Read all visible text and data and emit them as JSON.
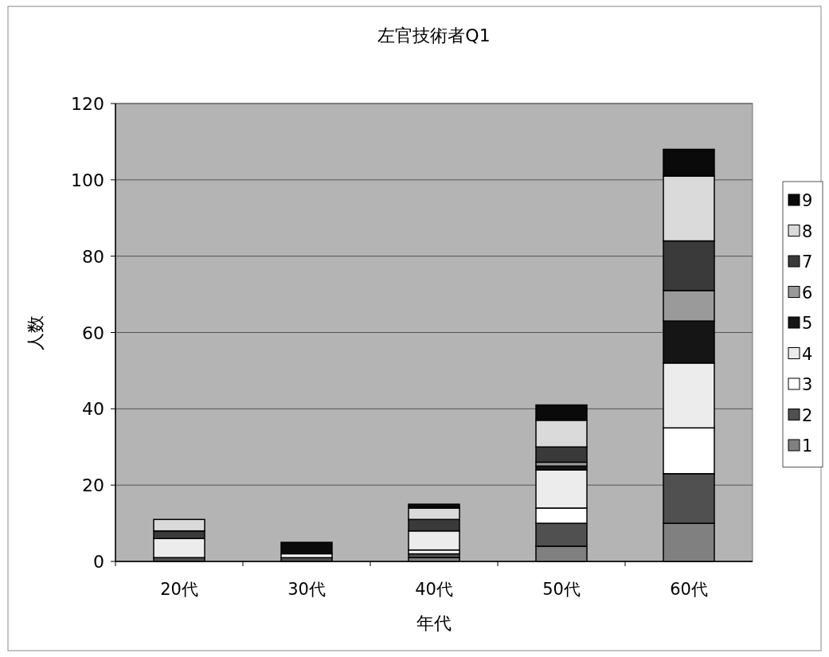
{
  "chart_data": {
    "type": "bar",
    "title": "左官技術者Q1",
    "xlabel": "年代",
    "ylabel": "人数",
    "categories": [
      "20代",
      "30代",
      "40代",
      "50代",
      "60代"
    ],
    "stacked": true,
    "ylim": [
      0,
      120
    ],
    "yticks": [
      0,
      20,
      40,
      60,
      80,
      100,
      120
    ],
    "grid": "y",
    "legend": "right",
    "series": [
      {
        "name": "1",
        "color": "#808080",
        "values": [
          0,
          0,
          1,
          4,
          10
        ]
      },
      {
        "name": "2",
        "color": "#505050",
        "values": [
          1,
          1,
          1,
          6,
          13
        ]
      },
      {
        "name": "3",
        "color": "#ffffff",
        "values": [
          0,
          1,
          1,
          4,
          12
        ]
      },
      {
        "name": "4",
        "color": "#ececec",
        "values": [
          5,
          0,
          5,
          10,
          17
        ]
      },
      {
        "name": "5",
        "color": "#151515",
        "values": [
          0,
          0,
          0,
          1,
          11
        ]
      },
      {
        "name": "6",
        "color": "#9a9a9a",
        "values": [
          0,
          0,
          0,
          1,
          8
        ]
      },
      {
        "name": "7",
        "color": "#3a3a3a",
        "values": [
          2,
          0,
          3,
          4,
          13
        ]
      },
      {
        "name": "8",
        "color": "#dadada",
        "values": [
          3,
          0,
          3,
          7,
          17
        ]
      },
      {
        "name": "9",
        "color": "#0a0a0a",
        "values": [
          0,
          3,
          1,
          4,
          7
        ]
      }
    ]
  }
}
